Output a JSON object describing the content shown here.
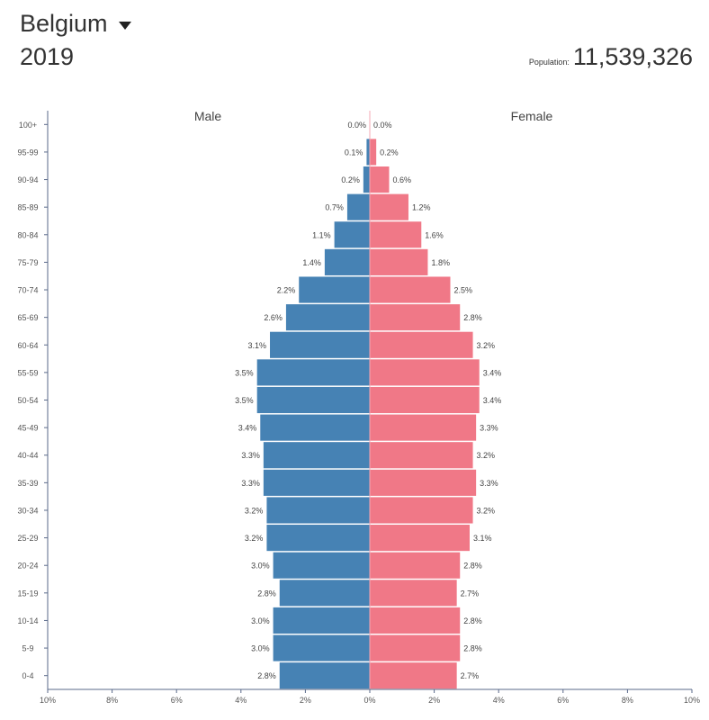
{
  "header": {
    "country": "Belgium",
    "year": "2019",
    "population_label": "Population:",
    "population_value": "11,539,326"
  },
  "colors": {
    "male": "#4682b4",
    "female": "#f07887",
    "axis": "#5a6a8a",
    "center": "#f4a8b4"
  },
  "chart_data": {
    "type": "bar",
    "orientation": "horizontal-pyramid",
    "series": [
      {
        "name": "Male",
        "values": [
          0.0,
          0.1,
          0.2,
          0.7,
          1.1,
          1.4,
          2.2,
          2.6,
          3.1,
          3.5,
          3.5,
          3.4,
          3.3,
          3.3,
          3.2,
          3.2,
          3.0,
          2.8,
          3.0,
          3.0,
          2.8
        ],
        "labels": [
          "0.0%",
          "0.1%",
          "0.2%",
          "0.7%",
          "1.1%",
          "1.4%",
          "2.2%",
          "2.6%",
          "3.1%",
          "3.5%",
          "3.5%",
          "3.4%",
          "3.3%",
          "3.3%",
          "3.2%",
          "3.2%",
          "3.0%",
          "2.8%",
          "3.0%",
          "3.0%",
          "2.8%"
        ]
      },
      {
        "name": "Female",
        "values": [
          0.0,
          0.2,
          0.6,
          1.2,
          1.6,
          1.8,
          2.5,
          2.8,
          3.2,
          3.4,
          3.4,
          3.3,
          3.2,
          3.3,
          3.2,
          3.1,
          2.8,
          2.7,
          2.8,
          2.8,
          2.7
        ],
        "labels": [
          "0.0%",
          "0.2%",
          "0.6%",
          "1.2%",
          "1.6%",
          "1.8%",
          "2.5%",
          "2.8%",
          "3.2%",
          "3.4%",
          "3.4%",
          "3.3%",
          "3.2%",
          "3.3%",
          "3.2%",
          "3.1%",
          "2.8%",
          "2.7%",
          "2.8%",
          "2.8%",
          "2.7%"
        ]
      }
    ],
    "categories": [
      "100+",
      "95-99",
      "90-94",
      "85-89",
      "80-84",
      "75-79",
      "70-74",
      "65-69",
      "60-64",
      "55-59",
      "50-54",
      "45-49",
      "40-44",
      "35-39",
      "30-34",
      "25-29",
      "20-24",
      "15-19",
      "10-14",
      "5-9",
      "0-4"
    ],
    "xlim": [
      -10,
      10
    ],
    "x_ticks": [
      "10%",
      "8%",
      "6%",
      "4%",
      "2%",
      "0%",
      "2%",
      "4%",
      "6%",
      "8%",
      "10%"
    ],
    "title": "",
    "xlabel": "",
    "ylabel": ""
  }
}
